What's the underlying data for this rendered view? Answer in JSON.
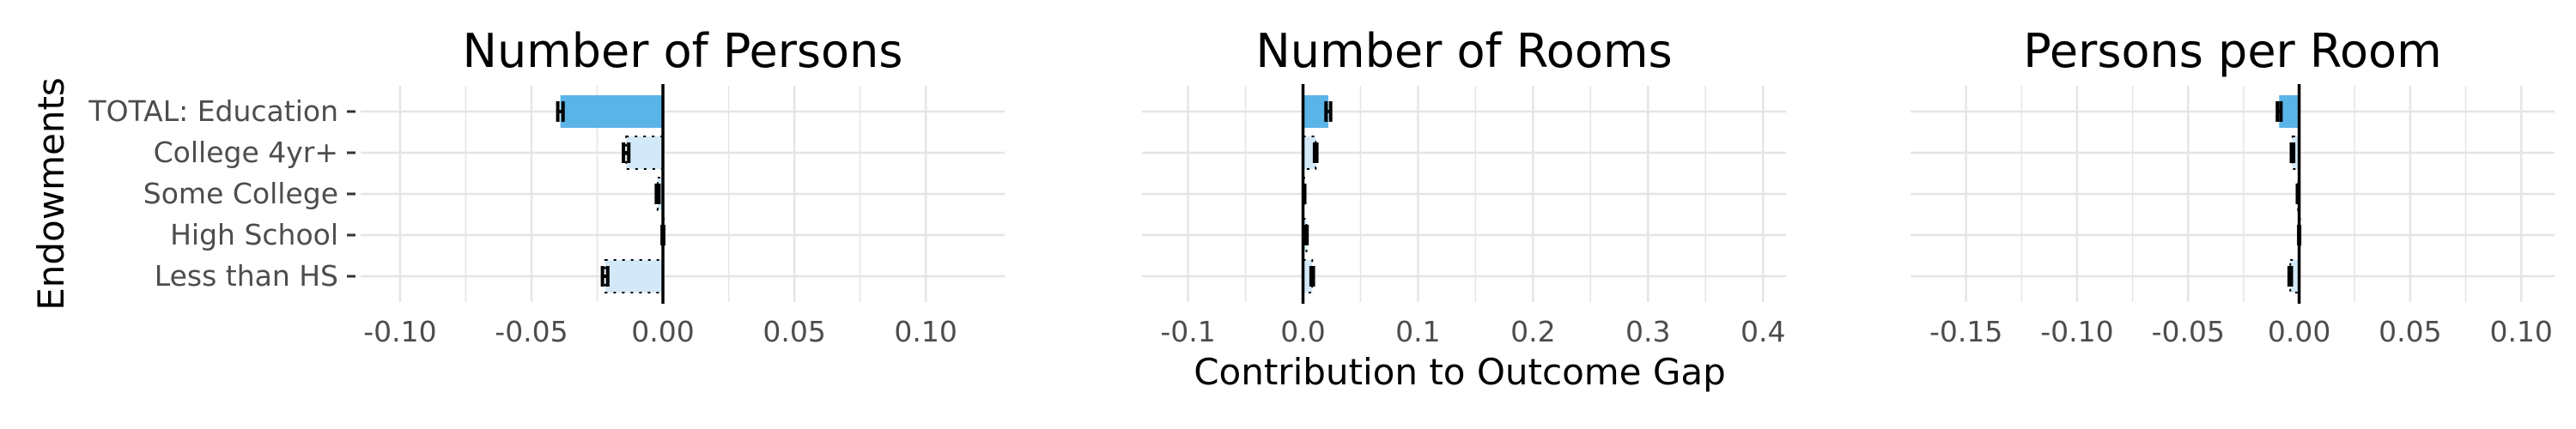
{
  "chart_data": {
    "type": "bar",
    "ylabel": "Endowments",
    "xlabel": "Contribution to Outcome Gap",
    "categories": [
      "TOTAL: Education",
      "College 4yr+",
      "Some College",
      "High School",
      "Less than HS"
    ],
    "bar_styles": [
      "solid",
      "dotted",
      "dotted",
      "dotted",
      "dotted"
    ],
    "colors": {
      "solid": "#5ab4e8",
      "light": "#d3e9f7",
      "grid": "#e5e5e5",
      "zero_line": "#000000"
    },
    "panels": [
      {
        "title": "Number of Persons",
        "xlim": [
          -0.115,
          0.13
        ],
        "ticks": [
          -0.1,
          -0.05,
          0.0,
          0.05,
          0.1
        ],
        "tick_labels": [
          "-0.10",
          "-0.05",
          "0.00",
          "0.05",
          "0.10"
        ],
        "values": [
          -0.039,
          -0.014,
          -0.002,
          0.0,
          -0.022
        ],
        "errors": [
          0.001,
          0.001,
          0.0005,
          0.0003,
          0.001
        ]
      },
      {
        "title": "Number of Rooms",
        "xlim": [
          -0.14,
          0.42
        ],
        "ticks": [
          -0.1,
          0.0,
          0.1,
          0.2,
          0.3,
          0.4
        ],
        "tick_labels": [
          "-0.1",
          "0.0",
          "0.1",
          "0.2",
          "0.3",
          "0.4"
        ],
        "values": [
          0.022,
          0.011,
          0.001,
          0.003,
          0.008
        ],
        "errors": [
          0.002,
          0.001,
          0.0005,
          0.0005,
          0.001
        ]
      },
      {
        "title": "Persons per Room",
        "xlim": [
          -0.175,
          0.115
        ],
        "ticks": [
          -0.15,
          -0.1,
          -0.05,
          0.0,
          0.05,
          0.1
        ],
        "tick_labels": [
          "-0.15",
          "-0.10",
          "-0.05",
          "0.00",
          "0.05",
          "0.10"
        ],
        "values": [
          -0.009,
          -0.003,
          -0.0005,
          0.0,
          -0.004
        ],
        "errors": [
          0.0008,
          0.0005,
          0.0003,
          0.0002,
          0.0005
        ]
      }
    ]
  }
}
